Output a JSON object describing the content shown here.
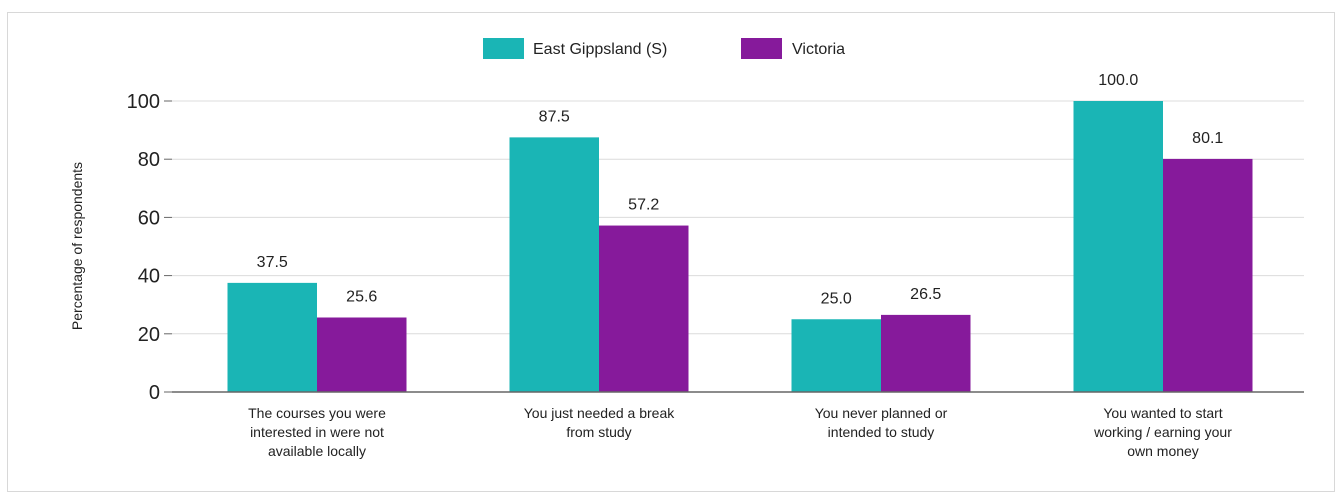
{
  "chart_data": {
    "type": "bar",
    "categories": [
      [
        "The courses you were",
        "interested in were not",
        "available locally"
      ],
      [
        "You just needed a break",
        "from study"
      ],
      [
        "You never planned or",
        "intended to study"
      ],
      [
        "You wanted to start",
        "working / earning your",
        "own money"
      ]
    ],
    "series": [
      {
        "name": "East Gippsland (S)",
        "color": "#1ab5b5",
        "values": [
          37.5,
          87.5,
          25.0,
          100.0
        ],
        "labels": [
          "37.5",
          "87.5",
          "25.0",
          "100.0"
        ]
      },
      {
        "name": "Victoria",
        "color": "#861a9b",
        "values": [
          25.6,
          57.2,
          26.5,
          80.1
        ],
        "labels": [
          "25.6",
          "57.2",
          "26.5",
          "80.1"
        ]
      }
    ],
    "ylabel": "Percentage of respondents",
    "ylim": [
      0,
      100
    ],
    "yticks": [
      "0",
      "20",
      "40",
      "60",
      "80",
      "100"
    ],
    "grid": true,
    "legend_position": "top-center"
  }
}
